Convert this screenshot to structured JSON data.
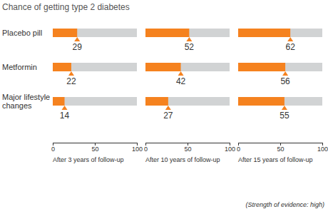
{
  "chart_data": [
    {
      "type": "bar",
      "orientation": "horizontal",
      "title": "Chance of getting type 2 diabetes",
      "categories": [
        "Placebo pill",
        "Metformin",
        "Major lifestyle changes"
      ],
      "values": [
        29,
        22,
        14
      ],
      "color": "#f5821f",
      "xlim": [
        0,
        100
      ],
      "xticks": [
        0,
        50,
        100
      ],
      "xlabel": "After 3 years of follow-up",
      "data_labels": true
    },
    {
      "type": "bar",
      "orientation": "horizontal",
      "categories": [
        "Placebo pill",
        "Metformin",
        "Major lifestyle changes"
      ],
      "values": [
        52,
        42,
        27
      ],
      "color": "#f5821f",
      "xlim": [
        0,
        100
      ],
      "xticks": [
        0,
        50,
        100
      ],
      "xlabel": "After 10 years of follow-up",
      "data_labels": true,
      "tick_labels": "x"
    },
    {
      "type": "bar",
      "orientation": "horizontal",
      "categories": [
        "Placebo pill",
        "Metformin",
        "Major lifestyle changes"
      ],
      "values": [
        62,
        56,
        55
      ],
      "color": "#f5821f",
      "xlim": [
        0,
        100
      ],
      "xticks": [
        0,
        50,
        100
      ],
      "xlabel": "After 15 years of follow-up",
      "data_labels": true,
      "tick_labels": "x",
      "annotations": [
        "(Strength of evidence: high)"
      ]
    }
  ]
}
